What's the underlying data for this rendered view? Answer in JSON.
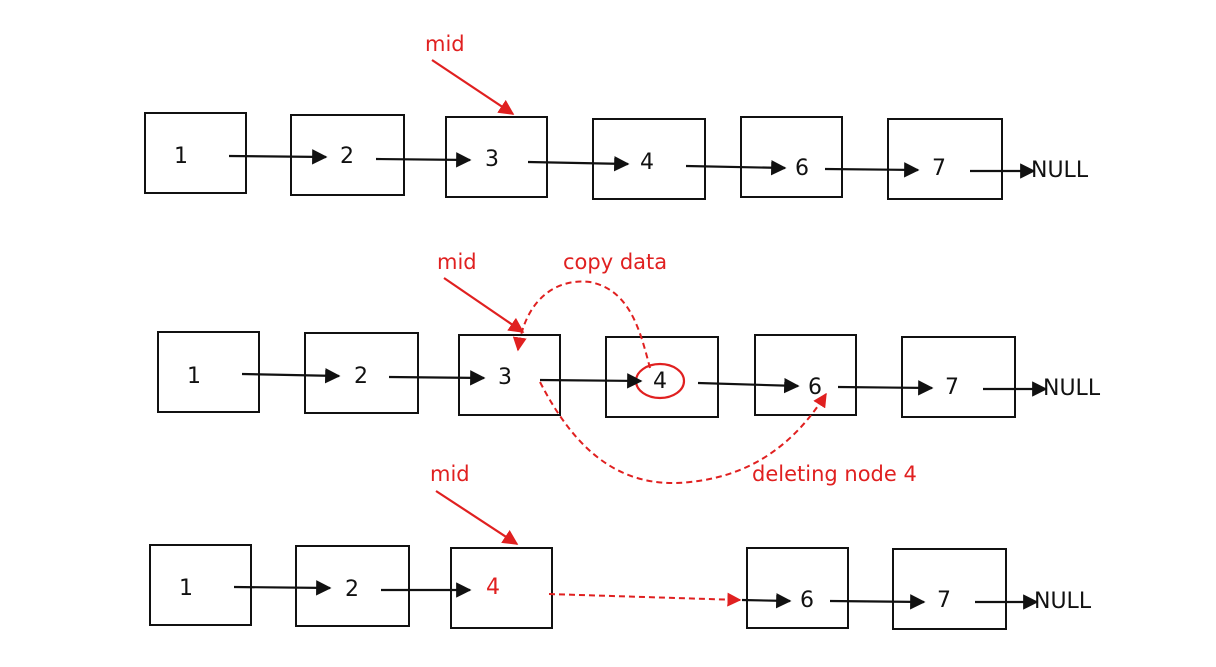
{
  "colors": {
    "line": "#111111",
    "accent": "#e02020"
  },
  "row1": {
    "mid_label": "mid",
    "nodes": [
      "1",
      "2",
      "3",
      "4",
      "6",
      "7"
    ],
    "null_label": "NULL"
  },
  "row2": {
    "mid_label": "mid",
    "copy_label": "copy data",
    "delete_label": "deleting node 4",
    "nodes": [
      "1",
      "2",
      "3",
      "4",
      "6",
      "7"
    ],
    "null_label": "NULL"
  },
  "row3": {
    "mid_label": "mid",
    "nodes": [
      "1",
      "2",
      "4",
      "6",
      "7"
    ],
    "null_label": "NULL"
  }
}
